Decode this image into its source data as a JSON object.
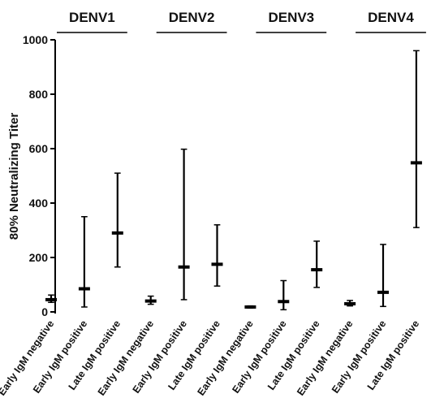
{
  "chart_data": {
    "type": "errorbar",
    "title": "",
    "xlabel": "",
    "ylabel": "80% Neutralizing Titer",
    "ylim": [
      0,
      1000
    ],
    "yticks": [
      "0",
      "200",
      "400",
      "600",
      "800",
      "1000"
    ],
    "ytick_values": [
      0,
      200,
      400,
      600,
      800,
      1000
    ],
    "grid": false,
    "legend": "none",
    "color": "#000000",
    "groups": [
      {
        "name": "DENV1",
        "categories": [
          "Early IgM negative",
          "Early IgM positive",
          "Late IgM positive"
        ],
        "median": [
          45,
          85,
          290
        ],
        "low": [
          35,
          18,
          165
        ],
        "high": [
          62,
          350,
          510
        ]
      },
      {
        "name": "DENV2",
        "categories": [
          "Early IgM negative",
          "Early IgM positive",
          "Late IgM positive"
        ],
        "median": [
          40,
          165,
          175
        ],
        "low": [
          28,
          45,
          95
        ],
        "high": [
          58,
          598,
          320
        ]
      },
      {
        "name": "DENV3",
        "categories": [
          "Early IgM negative",
          "Early IgM positive",
          "Late IgM positive"
        ],
        "median": [
          18,
          38,
          155
        ],
        "low": [
          14,
          8,
          90
        ],
        "high": [
          22,
          115,
          260
        ]
      },
      {
        "name": "DENV4",
        "categories": [
          "Early IgM negative",
          "Early IgM positive",
          "Late IgM positive"
        ],
        "median": [
          30,
          72,
          548
        ],
        "low": [
          22,
          20,
          310
        ],
        "high": [
          42,
          248,
          960
        ]
      }
    ]
  }
}
